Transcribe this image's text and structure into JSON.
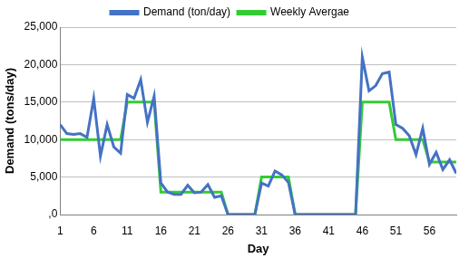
{
  "chart_data": {
    "type": "line",
    "x_label": "Day",
    "y_label": "Demand (tons/day)",
    "x": [
      1,
      2,
      3,
      4,
      5,
      6,
      7,
      8,
      9,
      10,
      11,
      12,
      13,
      14,
      15,
      16,
      17,
      18,
      19,
      20,
      21,
      22,
      23,
      24,
      25,
      26,
      27,
      28,
      29,
      30,
      31,
      32,
      33,
      34,
      35,
      36,
      37,
      38,
      39,
      40,
      41,
      42,
      43,
      44,
      45,
      46,
      47,
      48,
      49,
      50,
      51,
      52,
      53,
      54,
      55,
      56,
      57,
      58,
      59,
      60
    ],
    "series": [
      {
        "name": "Demand (ton/day)",
        "color": "#4472c4",
        "values": [
          12000,
          10800,
          10700,
          10800,
          10300,
          15500,
          7800,
          12000,
          9000,
          8200,
          16000,
          15500,
          18000,
          12300,
          15800,
          4200,
          3000,
          2700,
          2700,
          3900,
          2900,
          3000,
          4000,
          2300,
          2500,
          0,
          0,
          0,
          0,
          0,
          4200,
          3800,
          5800,
          5300,
          4300,
          0,
          0,
          0,
          0,
          0,
          0,
          0,
          0,
          0,
          0,
          21000,
          16500,
          17200,
          18800,
          19000,
          12000,
          11500,
          10500,
          8000,
          11500,
          6700,
          8300,
          6000,
          7300,
          5500
        ]
      },
      {
        "name": "Weekly Avergae",
        "color": "#33cc33",
        "values": [
          10000,
          10000,
          10000,
          10000,
          10000,
          10000,
          10000,
          10000,
          10000,
          10000,
          15000,
          15000,
          15000,
          15000,
          15000,
          3000,
          3000,
          3000,
          3000,
          3000,
          3000,
          3000,
          3000,
          3000,
          3000,
          0,
          0,
          0,
          0,
          0,
          5000,
          5000,
          5000,
          5000,
          5000,
          0,
          0,
          0,
          0,
          0,
          0,
          0,
          0,
          0,
          0,
          15000,
          15000,
          15000,
          15000,
          15000,
          10000,
          10000,
          10000,
          10000,
          10000,
          7000,
          7000,
          7000,
          7000,
          7000
        ]
      }
    ],
    "xlim": [
      1,
      60
    ],
    "xticks": [
      1,
      6,
      11,
      16,
      21,
      26,
      31,
      36,
      41,
      46,
      51,
      56
    ],
    "ylim": [
      0,
      25000
    ],
    "yticks": [
      {
        "value": 0,
        "label": ",0"
      },
      {
        "value": 5000,
        "label": "5,000"
      },
      {
        "value": 10000,
        "label": "10,000"
      },
      {
        "value": 15000,
        "label": "15,000"
      },
      {
        "value": 20000,
        "label": "20,000"
      },
      {
        "value": 25000,
        "label": "25,000"
      }
    ],
    "grid": true,
    "legend": "top"
  }
}
